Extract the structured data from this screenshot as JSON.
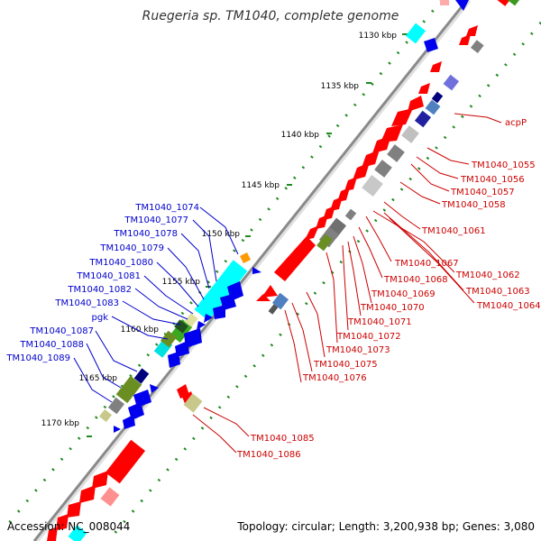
{
  "title": "Ruegeria sp. TM1040, complete genome",
  "footer": {
    "accession": "Accession: NC_008044",
    "summary": "Topology: circular; Length: 3,200,938 bp; Genes: 3,080"
  },
  "colors": {
    "backbone": "#9a9a9a",
    "gc_dots": "#1f8a1f",
    "gene_red": "#ff0000",
    "gene_blue": "#0000ee",
    "gene_cyan": "#00ffff",
    "gene_gray": "#808080",
    "gene_olive": "#6b8e23",
    "gene_navy": "#00007f",
    "gene_khaki": "#c8c88a",
    "gene_orange": "#ff9900",
    "label_blue": "#0000cc",
    "label_red": "#cc0000"
  },
  "ticks": [
    "1130 kbp",
    "1135 kbp",
    "1140 kbp",
    "1145 kbp",
    "1150 kbp",
    "1155 kbp",
    "1160 kbp",
    "1165 kbp",
    "1170 kbp"
  ],
  "labels_left": [
    "TM1040_1074",
    "TM1040_1077",
    "TM1040_1078",
    "TM1040_1079",
    "TM1040_1080",
    "TM1040_1081",
    "TM1040_1082",
    "TM1040_1083",
    "pgk",
    "TM1040_1087",
    "TM1040_1088",
    "TM1040_1089"
  ],
  "labels_right": [
    "acpP",
    "TM1040_1055",
    "TM1040_1056",
    "TM1040_1057",
    "TM1040_1058",
    "TM1040_1061",
    "TM1040_1067",
    "TM1040_1062",
    "TM1040_1068",
    "TM1040_1063",
    "TM1040_1069",
    "TM1040_1064",
    "TM1040_1070",
    "TM1040_1071",
    "TM1040_1072",
    "TM1040_1073",
    "TM1040_1075",
    "TM1040_1076",
    "TM1040_1085",
    "TM1040_1086"
  ]
}
